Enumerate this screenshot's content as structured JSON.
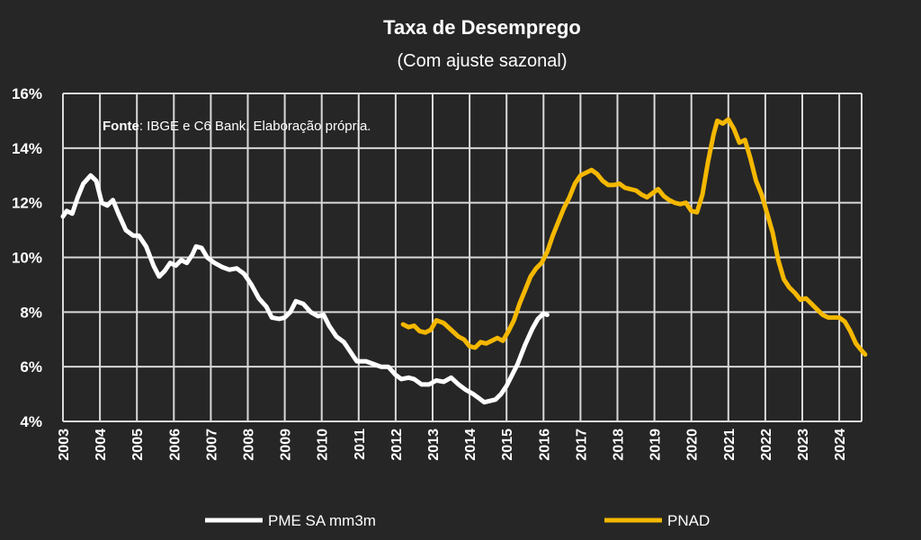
{
  "chart_data": {
    "type": "line",
    "title": "Taxa de Desemprego",
    "subtitle": "(Com ajuste sazonal)",
    "note_bold": "Fonte",
    "note_rest": ": IBGE e C6 Bank. Elaboração própria.",
    "ylim": [
      4,
      16
    ],
    "y_ticks": [
      "4%",
      "6%",
      "8%",
      "10%",
      "12%",
      "14%",
      "16%"
    ],
    "xlim": [
      2003,
      2024.7
    ],
    "x_ticks": [
      "2003",
      "2004",
      "2005",
      "2006",
      "2007",
      "2008",
      "2009",
      "2010",
      "2011",
      "2012",
      "2013",
      "2014",
      "2015",
      "2016",
      "2017",
      "2018",
      "2019",
      "2020",
      "2021",
      "2022",
      "2023",
      "2024"
    ],
    "grid": true,
    "legend_position": "bottom",
    "series": [
      {
        "name": "PME SA mm3m",
        "color": "#ffffff",
        "points": [
          [
            2003.0,
            11.5
          ],
          [
            2003.1,
            11.7
          ],
          [
            2003.25,
            11.6
          ],
          [
            2003.4,
            12.2
          ],
          [
            2003.55,
            12.7
          ],
          [
            2003.75,
            13.0
          ],
          [
            2003.9,
            12.8
          ],
          [
            2004.05,
            12.0
          ],
          [
            2004.2,
            11.9
          ],
          [
            2004.35,
            12.1
          ],
          [
            2004.5,
            11.6
          ],
          [
            2004.7,
            11.0
          ],
          [
            2004.9,
            10.8
          ],
          [
            2005.05,
            10.8
          ],
          [
            2005.25,
            10.4
          ],
          [
            2005.45,
            9.7
          ],
          [
            2005.6,
            9.3
          ],
          [
            2005.75,
            9.5
          ],
          [
            2005.9,
            9.8
          ],
          [
            2006.05,
            9.7
          ],
          [
            2006.2,
            9.9
          ],
          [
            2006.35,
            9.8
          ],
          [
            2006.5,
            10.1
          ],
          [
            2006.6,
            10.4
          ],
          [
            2006.75,
            10.35
          ],
          [
            2006.9,
            10.0
          ],
          [
            2007.1,
            9.8
          ],
          [
            2007.3,
            9.65
          ],
          [
            2007.5,
            9.55
          ],
          [
            2007.7,
            9.6
          ],
          [
            2007.9,
            9.4
          ],
          [
            2008.1,
            9.0
          ],
          [
            2008.3,
            8.5
          ],
          [
            2008.5,
            8.2
          ],
          [
            2008.65,
            7.8
          ],
          [
            2008.85,
            7.75
          ],
          [
            2009.0,
            7.8
          ],
          [
            2009.15,
            8.0
          ],
          [
            2009.3,
            8.4
          ],
          [
            2009.5,
            8.3
          ],
          [
            2009.7,
            8.0
          ],
          [
            2009.9,
            7.85
          ],
          [
            2010.05,
            7.9
          ],
          [
            2010.2,
            7.5
          ],
          [
            2010.4,
            7.1
          ],
          [
            2010.6,
            6.9
          ],
          [
            2010.8,
            6.5
          ],
          [
            2010.95,
            6.2
          ],
          [
            2011.2,
            6.2
          ],
          [
            2011.4,
            6.1
          ],
          [
            2011.6,
            6.0
          ],
          [
            2011.8,
            6.0
          ],
          [
            2012.0,
            5.7
          ],
          [
            2012.15,
            5.55
          ],
          [
            2012.35,
            5.6
          ],
          [
            2012.5,
            5.55
          ],
          [
            2012.7,
            5.35
          ],
          [
            2012.9,
            5.35
          ],
          [
            2013.1,
            5.5
          ],
          [
            2013.3,
            5.45
          ],
          [
            2013.5,
            5.6
          ],
          [
            2013.7,
            5.35
          ],
          [
            2013.9,
            5.15
          ],
          [
            2014.1,
            5.0
          ],
          [
            2014.25,
            4.85
          ],
          [
            2014.4,
            4.7
          ],
          [
            2014.55,
            4.75
          ],
          [
            2014.7,
            4.8
          ],
          [
            2014.85,
            5.0
          ],
          [
            2015.0,
            5.3
          ],
          [
            2015.15,
            5.7
          ],
          [
            2015.3,
            6.1
          ],
          [
            2015.5,
            6.8
          ],
          [
            2015.7,
            7.4
          ],
          [
            2015.85,
            7.75
          ],
          [
            2016.0,
            7.95
          ],
          [
            2016.1,
            7.9
          ]
        ]
      },
      {
        "name": "PNAD",
        "color": "#f5b800",
        "points": [
          [
            2012.2,
            7.55
          ],
          [
            2012.35,
            7.45
          ],
          [
            2012.5,
            7.5
          ],
          [
            2012.65,
            7.3
          ],
          [
            2012.8,
            7.25
          ],
          [
            2012.95,
            7.35
          ],
          [
            2013.1,
            7.7
          ],
          [
            2013.3,
            7.6
          ],
          [
            2013.5,
            7.35
          ],
          [
            2013.7,
            7.1
          ],
          [
            2013.85,
            7.0
          ],
          [
            2014.0,
            6.75
          ],
          [
            2014.15,
            6.7
          ],
          [
            2014.3,
            6.9
          ],
          [
            2014.45,
            6.85
          ],
          [
            2014.6,
            6.95
          ],
          [
            2014.75,
            7.05
          ],
          [
            2014.9,
            6.95
          ],
          [
            2015.05,
            7.3
          ],
          [
            2015.2,
            7.7
          ],
          [
            2015.35,
            8.3
          ],
          [
            2015.5,
            8.8
          ],
          [
            2015.65,
            9.3
          ],
          [
            2015.8,
            9.6
          ],
          [
            2015.95,
            9.8
          ],
          [
            2016.1,
            10.2
          ],
          [
            2016.25,
            10.8
          ],
          [
            2016.4,
            11.3
          ],
          [
            2016.55,
            11.8
          ],
          [
            2016.7,
            12.2
          ],
          [
            2016.85,
            12.7
          ],
          [
            2017.0,
            13.0
          ],
          [
            2017.15,
            13.1
          ],
          [
            2017.3,
            13.2
          ],
          [
            2017.45,
            13.05
          ],
          [
            2017.6,
            12.8
          ],
          [
            2017.75,
            12.65
          ],
          [
            2017.9,
            12.65
          ],
          [
            2018.05,
            12.7
          ],
          [
            2018.2,
            12.55
          ],
          [
            2018.35,
            12.5
          ],
          [
            2018.5,
            12.45
          ],
          [
            2018.65,
            12.3
          ],
          [
            2018.8,
            12.2
          ],
          [
            2018.95,
            12.35
          ],
          [
            2019.1,
            12.5
          ],
          [
            2019.25,
            12.25
          ],
          [
            2019.4,
            12.1
          ],
          [
            2019.55,
            12.0
          ],
          [
            2019.7,
            11.95
          ],
          [
            2019.85,
            12.0
          ],
          [
            2020.0,
            11.7
          ],
          [
            2020.15,
            11.65
          ],
          [
            2020.3,
            12.3
          ],
          [
            2020.45,
            13.5
          ],
          [
            2020.6,
            14.5
          ],
          [
            2020.7,
            15.0
          ],
          [
            2020.85,
            14.9
          ],
          [
            2021.0,
            15.05
          ],
          [
            2021.15,
            14.7
          ],
          [
            2021.3,
            14.2
          ],
          [
            2021.45,
            14.3
          ],
          [
            2021.6,
            13.6
          ],
          [
            2021.75,
            12.8
          ],
          [
            2021.9,
            12.3
          ],
          [
            2022.05,
            11.6
          ],
          [
            2022.2,
            10.9
          ],
          [
            2022.35,
            9.9
          ],
          [
            2022.5,
            9.2
          ],
          [
            2022.65,
            8.9
          ],
          [
            2022.8,
            8.7
          ],
          [
            2022.95,
            8.45
          ],
          [
            2023.1,
            8.5
          ],
          [
            2023.25,
            8.3
          ],
          [
            2023.4,
            8.1
          ],
          [
            2023.55,
            7.9
          ],
          [
            2023.7,
            7.8
          ],
          [
            2023.85,
            7.8
          ],
          [
            2024.0,
            7.8
          ],
          [
            2024.15,
            7.65
          ],
          [
            2024.3,
            7.3
          ],
          [
            2024.45,
            6.85
          ],
          [
            2024.6,
            6.6
          ],
          [
            2024.7,
            6.45
          ]
        ]
      }
    ]
  }
}
